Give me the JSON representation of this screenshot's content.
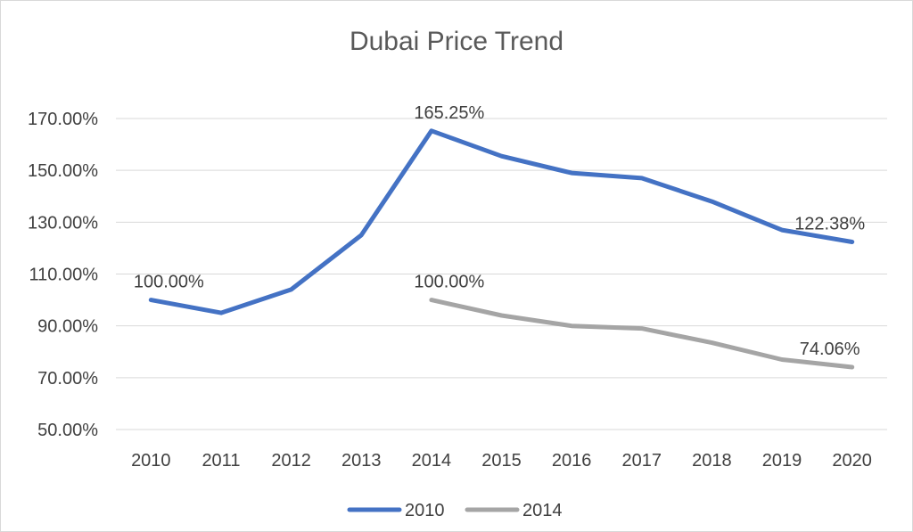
{
  "chart_data": {
    "type": "line",
    "title": "Dubai Price Trend",
    "xlabel": "",
    "ylabel": "",
    "categories": [
      "2010",
      "2011",
      "2012",
      "2013",
      "2014",
      "2015",
      "2016",
      "2017",
      "2018",
      "2019",
      "2020"
    ],
    "ylim": [
      50,
      170
    ],
    "yticks": [
      50,
      70,
      90,
      110,
      130,
      150,
      170
    ],
    "ytick_labels": [
      "50.00%",
      "70.00%",
      "90.00%",
      "110.00%",
      "130.00%",
      "150.00%",
      "170.00%"
    ],
    "grid": true,
    "legend_position": "bottom",
    "series": [
      {
        "name": "2010",
        "color": "#4472c4",
        "values": [
          100.0,
          95.0,
          104.0,
          125.0,
          165.25,
          155.5,
          149.0,
          147.0,
          138.0,
          127.0,
          122.38
        ],
        "data_labels": [
          {
            "index": 0,
            "text": "100.00%"
          },
          {
            "index": 4,
            "text": "165.25%"
          },
          {
            "index": 10,
            "text": "122.38%"
          }
        ]
      },
      {
        "name": "2014",
        "color": "#a5a5a5",
        "values": [
          null,
          null,
          null,
          null,
          100.0,
          94.0,
          90.0,
          89.0,
          83.5,
          77.0,
          74.06
        ],
        "data_labels": [
          {
            "index": 4,
            "text": "100.00%"
          },
          {
            "index": 10,
            "text": "74.06%"
          }
        ]
      }
    ]
  }
}
